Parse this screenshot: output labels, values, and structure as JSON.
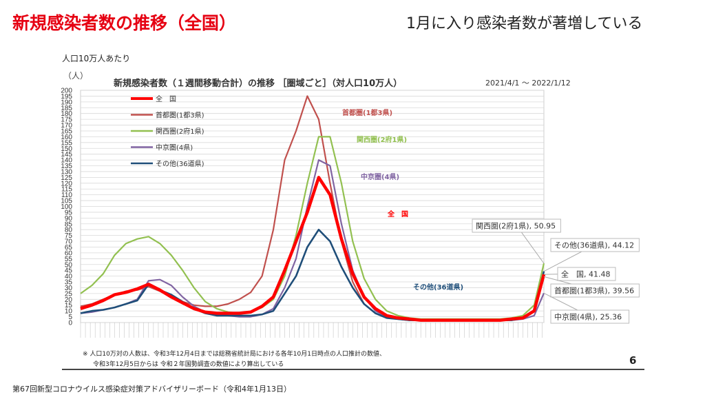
{
  "slide": {
    "title": "新規感染者数の推移（全国）",
    "headline": "1月に入り感染者数が著増している",
    "per_label": "人口10万人あたり",
    "page_number": "6",
    "footer": "第67回新型コロナウイルス感染症対策アドバイザリーボード（令和4年1月13日）",
    "notes": [
      "※ 人口10万対の人数は、令和3年12月4日までは総務省統計局における各年10月1日時点の人口推計の数値、",
      "令和3年12月5日からは 令和２年国勢調査の数値により算出している"
    ]
  },
  "chart_data": {
    "type": "line",
    "title": "新規感染者数（１週間移動合計）の推移 ［圏域ごと］（対人口10万人）",
    "period": "2021/4/1 ～ 2022/1/12",
    "ylabel": "（人）",
    "xlabel": "",
    "ylim": [
      0,
      200
    ],
    "ytick_step": 5,
    "grid": true,
    "legend_position": "top-left",
    "x_days_from_start": [
      0,
      7,
      14,
      21,
      28,
      35,
      42,
      49,
      56,
      63,
      70,
      77,
      84,
      91,
      98,
      105,
      112,
      119,
      126,
      133,
      140,
      147,
      154,
      161,
      168,
      175,
      182,
      189,
      196,
      203,
      210,
      217,
      224,
      231,
      238,
      245,
      252,
      259,
      266,
      273,
      280,
      286
    ],
    "series": [
      {
        "name": "首都圏(1都3県)",
        "color": "#c0504d",
        "width": 2.2,
        "inline_label": "首都圏(1都3県)",
        "end_label": "首都圏(1都3県), 39.56",
        "values": [
          14,
          16,
          20,
          24,
          27,
          28,
          31,
          27,
          22,
          18,
          15,
          14,
          14,
          16,
          20,
          26,
          40,
          80,
          140,
          165,
          195,
          175,
          120,
          70,
          35,
          16,
          8,
          4,
          3,
          2,
          2,
          2,
          2,
          2,
          2,
          2,
          2,
          2,
          3,
          4,
          10,
          39.56
        ]
      },
      {
        "name": "関西圏(2府1県)",
        "color": "#92c050",
        "width": 2.2,
        "inline_label": "関西圏(2府1県)",
        "end_label": "関西圏(2府1県), 50.95",
        "values": [
          25,
          32,
          42,
          58,
          68,
          72,
          74,
          68,
          58,
          45,
          30,
          18,
          12,
          9,
          8,
          9,
          13,
          20,
          40,
          75,
          120,
          160,
          160,
          120,
          70,
          38,
          20,
          10,
          6,
          4,
          3,
          3,
          3,
          3,
          3,
          3,
          3,
          3,
          4,
          6,
          15,
          50.95
        ]
      },
      {
        "name": "中京圏(4県)",
        "color": "#8064a2",
        "width": 2.2,
        "inline_label": "中京圏(4県)",
        "end_label": "中京圏(4県), 25.36",
        "values": [
          8,
          9,
          11,
          13,
          16,
          20,
          36,
          37,
          32,
          22,
          14,
          9,
          7,
          6,
          5,
          5,
          7,
          12,
          30,
          55,
          100,
          140,
          135,
          85,
          45,
          22,
          10,
          5,
          3,
          2,
          2,
          2,
          2,
          2,
          2,
          2,
          2,
          2,
          2,
          3,
          6,
          25.36
        ]
      },
      {
        "name": "その他(36道県)",
        "color": "#1f4e79",
        "width": 2.6,
        "inline_label": "その他(36道県)",
        "end_label": "その他(36道県), 44.12",
        "values": [
          8,
          10,
          11,
          13,
          16,
          19,
          33,
          28,
          24,
          18,
          12,
          8,
          6,
          6,
          6,
          6,
          7,
          10,
          25,
          40,
          65,
          80,
          70,
          48,
          30,
          16,
          8,
          4,
          3,
          2,
          2,
          2,
          2,
          2,
          2,
          2,
          2,
          2,
          2,
          4,
          10,
          44.12
        ]
      },
      {
        "name": "全　国",
        "color": "#ff0000",
        "width": 4.5,
        "inline_label": "全　国",
        "end_label": "全　国, 41.48",
        "values": [
          12,
          15,
          19,
          24,
          26,
          29,
          33,
          28,
          22,
          17,
          12,
          9,
          8,
          8,
          8,
          9,
          14,
          22,
          45,
          70,
          95,
          125,
          110,
          72,
          42,
          22,
          12,
          6,
          4,
          3,
          2,
          2,
          2,
          2,
          2,
          2,
          2,
          2,
          3,
          4,
          10,
          41.48
        ]
      }
    ]
  }
}
